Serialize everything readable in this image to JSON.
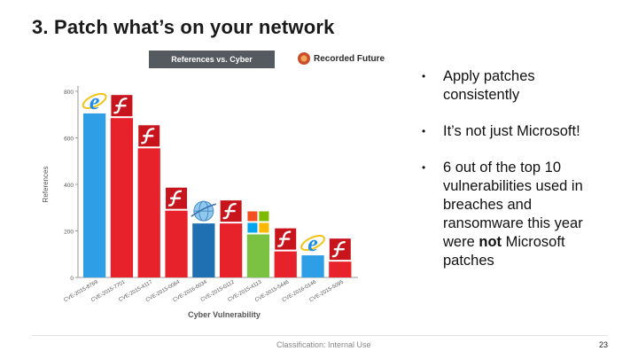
{
  "slide": {
    "title": "3.  Patch what’s on your network",
    "footer": "Classification: Internal Use",
    "page_number": "23"
  },
  "bullets": [
    {
      "text": "Apply patches consistently"
    },
    {
      "text": "It’s not just Microsoft!"
    },
    {
      "pre": "6 out of the top 10 vulnerabilities used in breaches and ransomware this year were ",
      "bold": "not",
      "post": " Microsoft patches"
    }
  ],
  "chart_header": {
    "title": "References vs. Cyber Vulnerability",
    "brand": "Recorded Future"
  },
  "chart_data": {
    "type": "bar",
    "title": "References vs. Cyber Vulnerability",
    "xlabel": "Cyber Vulnerability",
    "ylabel": "References",
    "ylim": [
      0,
      800
    ],
    "yticks": [
      0,
      200,
      400,
      600,
      800
    ],
    "grid": false,
    "categories": [
      "CVE-2015-8769",
      "CVE-2015-7701",
      "CVE-2015-4117",
      "CVE-2015-0064",
      "CVE-2016-0034",
      "CVE-2015-0112",
      "CVE-2015-4113",
      "CVE-2015-5446",
      "CVE-2016-0146",
      "CVE-2015-5095"
    ],
    "values": [
      705,
      685,
      555,
      287,
      232,
      232,
      185,
      112,
      95,
      68
    ],
    "bar_colors": [
      "#2e9fe6",
      "#e8222b",
      "#e8222b",
      "#e8222b",
      "#1f6fb3",
      "#e8222b",
      "#7cc242",
      "#e8222b",
      "#2e9fe6",
      "#e8222b"
    ],
    "icons": [
      "ie-icon",
      "flash-icon",
      "flash-icon",
      "flash-icon",
      "globe-icon",
      "flash-icon",
      "windows-icon",
      "flash-icon",
      "ie-icon",
      "flash-icon"
    ]
  }
}
